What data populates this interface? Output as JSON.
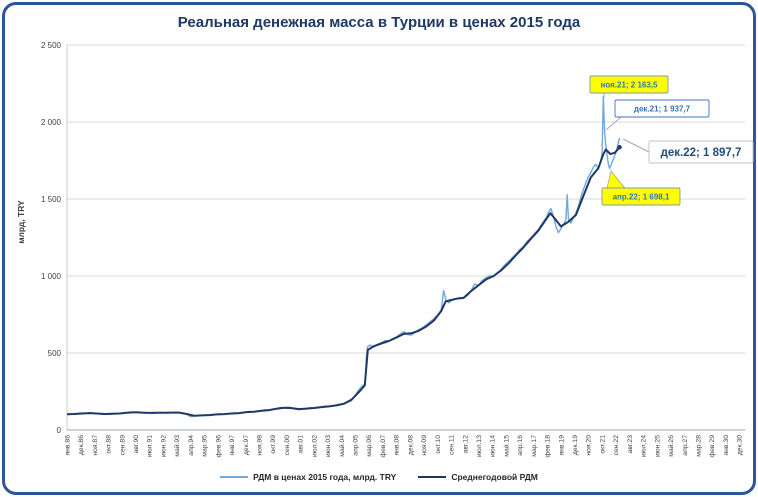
{
  "title": "Реальная денежная масса в Турции в ценах 2015 года",
  "y_axis_title": "млрд, TRY",
  "colors": {
    "frame": "#2E5597",
    "title": "#1F3864",
    "grid": "#D9D9D9",
    "monthly_series": "#6FA8DC",
    "annual_series": "#1F3864",
    "annotation_yellow": "#FFFF00",
    "annotation_text_blue": "#2E74B5",
    "annotation_text_dark": "#1F4E79"
  },
  "chart_data": {
    "type": "line",
    "title": "Реальная денежная масса в Турции в ценах 2015 года",
    "xlabel": "",
    "ylabel": "млрд, TRY",
    "ylim": [
      0,
      2500
    ],
    "x_range_years": [
      1986.0,
      2031.3
    ],
    "grid": "horizontal",
    "legend_position": "bottom",
    "y_ticks": [
      "0",
      "500",
      "1 000",
      "1 500",
      "2 000",
      "2 500"
    ],
    "x_tick_labels": [
      "янв.86",
      "дек.86",
      "ноя.87",
      "окт.88",
      "сен.89",
      "авг.90",
      "июл.91",
      "июн.92",
      "май.93",
      "апр.94",
      "мар.95",
      "фев.96",
      "янв.97",
      "дек.97",
      "ноя.98",
      "окт.99",
      "сен.00",
      "авг.01",
      "июл.02",
      "июн.03",
      "май.04",
      "апр.05",
      "мар.06",
      "фев.07",
      "янв.08",
      "дек.08",
      "ноя.09",
      "окт.10",
      "сен.11",
      "авг.12",
      "июл.13",
      "июн.14",
      "май.15",
      "апр.16",
      "мар.17",
      "фев.18",
      "янв.19",
      "дек.19",
      "ноя.20",
      "окт.21",
      "сен.22",
      "авг.23",
      "июл.24",
      "июн.25",
      "май.26",
      "апр.27",
      "мар.28",
      "фев.29",
      "янв.30",
      "дек.30"
    ],
    "series": [
      {
        "name": "РДМ в ценах 2015 года, млрд. TRY",
        "color": "#6FA8DC",
        "points": [
          [
            1986.0,
            100
          ],
          [
            1986.17,
            104
          ],
          [
            1986.33,
            102
          ],
          [
            1986.5,
            107
          ],
          [
            1986.67,
            105
          ],
          [
            1986.83,
            109
          ],
          [
            1987.0,
            111
          ],
          [
            1987.25,
            108
          ],
          [
            1987.5,
            113
          ],
          [
            1987.75,
            110
          ],
          [
            1988.0,
            107
          ],
          [
            1988.25,
            103
          ],
          [
            1988.5,
            105
          ],
          [
            1988.75,
            101
          ],
          [
            1989.0,
            104
          ],
          [
            1989.25,
            108
          ],
          [
            1989.5,
            105
          ],
          [
            1989.75,
            110
          ],
          [
            1990.0,
            113
          ],
          [
            1990.25,
            117
          ],
          [
            1990.5,
            114
          ],
          [
            1990.75,
            118
          ],
          [
            1991.0,
            113
          ],
          [
            1991.25,
            109
          ],
          [
            1991.5,
            112
          ],
          [
            1991.75,
            108
          ],
          [
            1992.0,
            111
          ],
          [
            1992.25,
            114
          ],
          [
            1992.5,
            111
          ],
          [
            1992.75,
            114
          ],
          [
            1993.0,
            112
          ],
          [
            1993.25,
            116
          ],
          [
            1993.5,
            113
          ],
          [
            1993.75,
            109
          ],
          [
            1994.0,
            103
          ],
          [
            1994.17,
            90
          ],
          [
            1994.33,
            86
          ],
          [
            1994.5,
            90
          ],
          [
            1994.75,
            93
          ],
          [
            1995.0,
            95
          ],
          [
            1995.25,
            98
          ],
          [
            1995.5,
            96
          ],
          [
            1995.75,
            99
          ],
          [
            1996.0,
            101
          ],
          [
            1996.25,
            104
          ],
          [
            1996.5,
            102
          ],
          [
            1996.75,
            106
          ],
          [
            1997.0,
            108
          ],
          [
            1997.25,
            111
          ],
          [
            1997.5,
            109
          ],
          [
            1997.75,
            114
          ],
          [
            1998.0,
            117
          ],
          [
            1998.25,
            121
          ],
          [
            1998.5,
            118
          ],
          [
            1998.75,
            123
          ],
          [
            1999.0,
            126
          ],
          [
            1999.25,
            131
          ],
          [
            1999.5,
            128
          ],
          [
            1999.75,
            134
          ],
          [
            2000.0,
            139
          ],
          [
            2000.25,
            146
          ],
          [
            2000.5,
            143
          ],
          [
            2000.75,
            149
          ],
          [
            2001.0,
            144
          ],
          [
            2001.25,
            136
          ],
          [
            2001.5,
            132
          ],
          [
            2001.75,
            136
          ],
          [
            2002.0,
            140
          ],
          [
            2002.25,
            145
          ],
          [
            2002.5,
            142
          ],
          [
            2002.75,
            148
          ],
          [
            2003.0,
            150
          ],
          [
            2003.25,
            155
          ],
          [
            2003.5,
            152
          ],
          [
            2003.75,
            158
          ],
          [
            2004.0,
            162
          ],
          [
            2004.25,
            168
          ],
          [
            2004.5,
            173
          ],
          [
            2004.75,
            180
          ],
          [
            2005.0,
            190
          ],
          [
            2005.25,
            225
          ],
          [
            2005.5,
            262
          ],
          [
            2005.75,
            288
          ],
          [
            2005.92,
            296
          ],
          [
            2006.0,
            470
          ],
          [
            2006.08,
            540
          ],
          [
            2006.25,
            552
          ],
          [
            2006.5,
            538
          ],
          [
            2006.75,
            556
          ],
          [
            2007.0,
            566
          ],
          [
            2007.25,
            582
          ],
          [
            2007.5,
            575
          ],
          [
            2007.75,
            592
          ],
          [
            2008.0,
            604
          ],
          [
            2008.25,
            622
          ],
          [
            2008.5,
            638
          ],
          [
            2008.75,
            620
          ],
          [
            2009.0,
            616
          ],
          [
            2009.25,
            634
          ],
          [
            2009.5,
            652
          ],
          [
            2009.75,
            664
          ],
          [
            2010.0,
            682
          ],
          [
            2010.25,
            702
          ],
          [
            2010.5,
            722
          ],
          [
            2010.75,
            744
          ],
          [
            2011.0,
            780
          ],
          [
            2011.17,
            905
          ],
          [
            2011.33,
            838
          ],
          [
            2011.5,
            826
          ],
          [
            2011.75,
            844
          ],
          [
            2012.0,
            852
          ],
          [
            2012.25,
            860
          ],
          [
            2012.5,
            856
          ],
          [
            2012.75,
            874
          ],
          [
            2013.0,
            905
          ],
          [
            2013.25,
            948
          ],
          [
            2013.5,
            938
          ],
          [
            2013.75,
            972
          ],
          [
            2014.0,
            988
          ],
          [
            2014.25,
            1002
          ],
          [
            2014.5,
            996
          ],
          [
            2014.75,
            1022
          ],
          [
            2015.0,
            1042
          ],
          [
            2015.25,
            1072
          ],
          [
            2015.5,
            1094
          ],
          [
            2015.75,
            1118
          ],
          [
            2016.0,
            1142
          ],
          [
            2016.25,
            1172
          ],
          [
            2016.5,
            1192
          ],
          [
            2016.75,
            1226
          ],
          [
            2017.0,
            1248
          ],
          [
            2017.25,
            1276
          ],
          [
            2017.5,
            1304
          ],
          [
            2017.75,
            1342
          ],
          [
            2018.0,
            1376
          ],
          [
            2018.17,
            1414
          ],
          [
            2018.33,
            1438
          ],
          [
            2018.5,
            1388
          ],
          [
            2018.67,
            1320
          ],
          [
            2018.83,
            1282
          ],
          [
            2019.0,
            1306
          ],
          [
            2019.17,
            1336
          ],
          [
            2019.33,
            1362
          ],
          [
            2019.42,
            1528
          ],
          [
            2019.5,
            1372
          ],
          [
            2019.67,
            1344
          ],
          [
            2019.83,
            1378
          ],
          [
            2020.0,
            1408
          ],
          [
            2020.17,
            1452
          ],
          [
            2020.33,
            1512
          ],
          [
            2020.5,
            1562
          ],
          [
            2020.67,
            1606
          ],
          [
            2020.83,
            1642
          ],
          [
            2021.0,
            1672
          ],
          [
            2021.17,
            1706
          ],
          [
            2021.33,
            1726
          ],
          [
            2021.5,
            1694
          ],
          [
            2021.67,
            1752
          ],
          [
            2021.75,
            1800
          ],
          [
            2021.83,
            2163.5
          ],
          [
            2021.92,
            1937.7
          ],
          [
            2022.0,
            1852
          ],
          [
            2022.08,
            1788
          ],
          [
            2022.17,
            1726
          ],
          [
            2022.25,
            1698.1
          ],
          [
            2022.33,
            1716
          ],
          [
            2022.5,
            1758
          ],
          [
            2022.67,
            1800
          ],
          [
            2022.83,
            1862
          ],
          [
            2022.92,
            1897.7
          ]
        ]
      },
      {
        "name": "Среднегодовой РДМ",
        "color": "#1F3864",
        "points": [
          [
            1986.0,
            102
          ],
          [
            1986.5,
            104
          ],
          [
            1987.0,
            107
          ],
          [
            1987.5,
            110
          ],
          [
            1988.0,
            107
          ],
          [
            1988.5,
            104
          ],
          [
            1989.0,
            105
          ],
          [
            1989.5,
            107
          ],
          [
            1990.0,
            112
          ],
          [
            1990.5,
            115
          ],
          [
            1991.0,
            113
          ],
          [
            1991.5,
            111
          ],
          [
            1992.0,
            112
          ],
          [
            1992.5,
            112
          ],
          [
            1993.0,
            113
          ],
          [
            1993.5,
            113
          ],
          [
            1994.0,
            104
          ],
          [
            1994.5,
            93
          ],
          [
            1995.0,
            95
          ],
          [
            1995.5,
            97
          ],
          [
            1996.0,
            101
          ],
          [
            1996.5,
            103
          ],
          [
            1997.0,
            107
          ],
          [
            1997.5,
            110
          ],
          [
            1998.0,
            116
          ],
          [
            1998.5,
            119
          ],
          [
            1999.0,
            125
          ],
          [
            1999.5,
            129
          ],
          [
            2000.0,
            138
          ],
          [
            2000.5,
            144
          ],
          [
            2001.0,
            142
          ],
          [
            2001.5,
            136
          ],
          [
            2002.0,
            139
          ],
          [
            2002.5,
            143
          ],
          [
            2003.0,
            149
          ],
          [
            2003.5,
            153
          ],
          [
            2004.0,
            160
          ],
          [
            2004.5,
            170
          ],
          [
            2005.0,
            196
          ],
          [
            2005.5,
            246
          ],
          [
            2005.9,
            290
          ],
          [
            2006.1,
            520
          ],
          [
            2006.5,
            544
          ],
          [
            2007.0,
            562
          ],
          [
            2007.5,
            578
          ],
          [
            2008.0,
            600
          ],
          [
            2008.5,
            624
          ],
          [
            2009.0,
            628
          ],
          [
            2009.5,
            644
          ],
          [
            2010.0,
            672
          ],
          [
            2010.5,
            710
          ],
          [
            2011.0,
            772
          ],
          [
            2011.3,
            836
          ],
          [
            2011.5,
            840
          ],
          [
            2012.0,
            852
          ],
          [
            2012.5,
            858
          ],
          [
            2013.0,
            902
          ],
          [
            2013.5,
            940
          ],
          [
            2014.0,
            978
          ],
          [
            2014.5,
            1000
          ],
          [
            2015.0,
            1036
          ],
          [
            2015.5,
            1082
          ],
          [
            2016.0,
            1136
          ],
          [
            2016.5,
            1186
          ],
          [
            2017.0,
            1242
          ],
          [
            2017.5,
            1296
          ],
          [
            2018.0,
            1366
          ],
          [
            2018.3,
            1408
          ],
          [
            2018.6,
            1372
          ],
          [
            2019.0,
            1322
          ],
          [
            2019.5,
            1352
          ],
          [
            2020.0,
            1396
          ],
          [
            2020.5,
            1520
          ],
          [
            2021.0,
            1640
          ],
          [
            2021.5,
            1700
          ],
          [
            2021.83,
            1790
          ],
          [
            2022.0,
            1822
          ],
          [
            2022.3,
            1792
          ],
          [
            2022.6,
            1800
          ],
          [
            2022.92,
            1836
          ]
        ]
      }
    ],
    "annotations": [
      {
        "label": "ноя.21; 2 163,5",
        "style": "yellow",
        "x": 2021.83,
        "y": 2163.5
      },
      {
        "label": "дек.21; 1 937,7",
        "style": "white",
        "x": 2021.92,
        "y": 1937.7
      },
      {
        "label": "дек.22; 1 897,7",
        "style": "big",
        "x": 2022.92,
        "y": 1897.7
      },
      {
        "label": "апр.22; 1 698,1",
        "style": "yellow",
        "x": 2022.25,
        "y": 1698.1
      }
    ]
  }
}
